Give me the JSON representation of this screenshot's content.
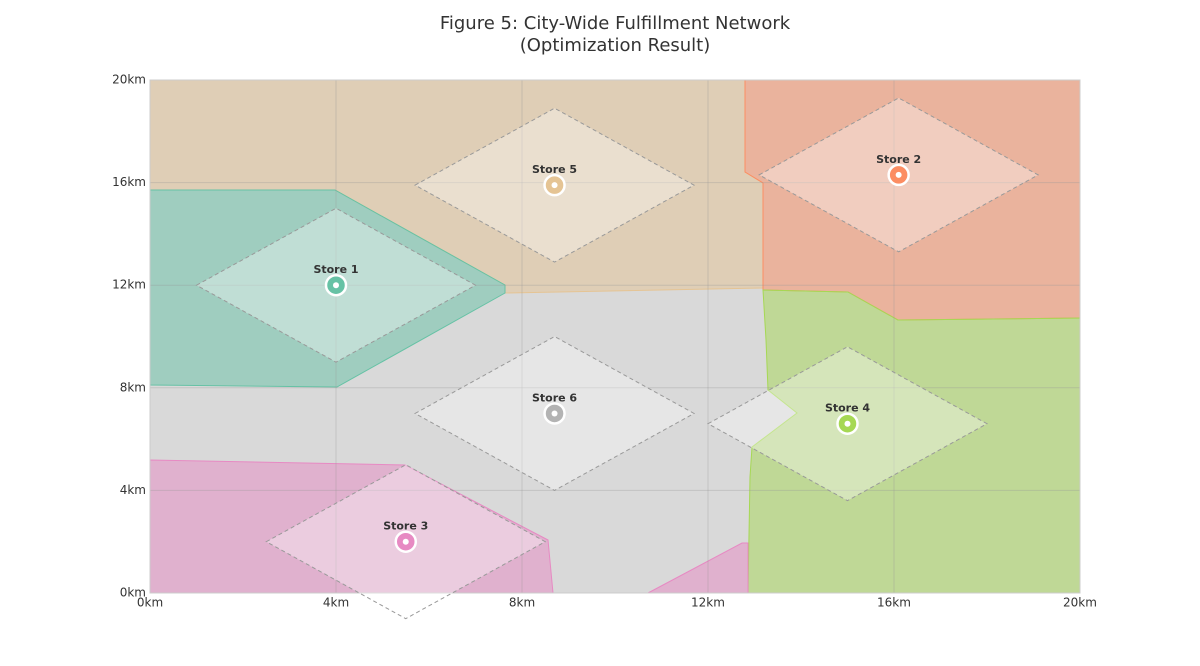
{
  "chart_data": {
    "type": "scatter",
    "title": "Figure 5: City-Wide Fulfillment Network",
    "subtitle": "(Optimization Result)",
    "xlim": [
      0,
      20
    ],
    "ylim": [
      0,
      20
    ],
    "xticks": [
      {
        "value": 0,
        "label": "0km"
      },
      {
        "value": 4,
        "label": "4km"
      },
      {
        "value": 8,
        "label": "8km"
      },
      {
        "value": 12,
        "label": "12km"
      },
      {
        "value": 16,
        "label": "16km"
      },
      {
        "value": 20,
        "label": "20km"
      }
    ],
    "yticks": [
      {
        "value": 0,
        "label": "0km"
      },
      {
        "value": 4,
        "label": "4km"
      },
      {
        "value": 8,
        "label": "8km"
      },
      {
        "value": 12,
        "label": "12km"
      },
      {
        "value": 16,
        "label": "16km"
      },
      {
        "value": 20,
        "label": "20km"
      }
    ],
    "grid": true,
    "service_radius": 3,
    "series": [
      {
        "name": "Store 1",
        "color": "#66c2a5",
        "x": [
          4.0
        ],
        "values": [
          12.0
        ]
      },
      {
        "name": "Store 2",
        "color": "#fc8d62",
        "x": [
          16.1
        ],
        "values": [
          16.3
        ]
      },
      {
        "name": "Store 3",
        "color": "#e78ac3",
        "x": [
          5.5
        ],
        "values": [
          2.0
        ]
      },
      {
        "name": "Store 4",
        "color": "#a6d854",
        "x": [
          15.0
        ],
        "values": [
          6.6
        ]
      },
      {
        "name": "Store 5",
        "color": "#e5c494",
        "x": [
          8.7
        ],
        "values": [
          15.9
        ]
      },
      {
        "name": "Store 6",
        "color": "#b3b3b3",
        "x": [
          8.7
        ],
        "values": [
          7.0
        ]
      }
    ]
  }
}
